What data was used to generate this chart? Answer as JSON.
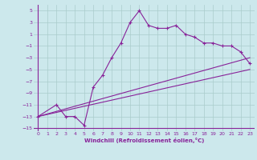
{
  "xlabel": "Windchill (Refroidissement éolien,°C)",
  "bg_color": "#cce8ec",
  "grid_color": "#aacccc",
  "line_color": "#882299",
  "xlim": [
    -0.5,
    23.5
  ],
  "ylim": [
    -15.5,
    6.0
  ],
  "xticks": [
    0,
    1,
    2,
    3,
    4,
    5,
    6,
    7,
    8,
    9,
    10,
    11,
    12,
    13,
    14,
    15,
    16,
    17,
    18,
    19,
    20,
    21,
    22,
    23
  ],
  "yticks": [
    -15,
    -13,
    -11,
    -9,
    -7,
    -5,
    -3,
    -1,
    1,
    3,
    5
  ],
  "curve1_x": [
    0,
    2,
    3,
    4,
    5,
    6,
    7,
    8,
    9,
    10,
    11,
    12,
    13,
    14,
    15,
    16,
    17,
    18,
    19,
    20,
    21,
    22,
    23
  ],
  "curve1_y": [
    -13,
    -11,
    -13,
    -13,
    -14.5,
    -8,
    -6,
    -3,
    -0.5,
    3,
    5,
    2.5,
    2,
    2,
    2.5,
    1,
    0.5,
    -0.5,
    -0.5,
    -1,
    -1,
    -2,
    -4
  ],
  "curve2_x": [
    0,
    23
  ],
  "curve2_y": [
    -13,
    -5
  ],
  "curve3_x": [
    0,
    23
  ],
  "curve3_y": [
    -13,
    -3
  ],
  "marker": "+"
}
